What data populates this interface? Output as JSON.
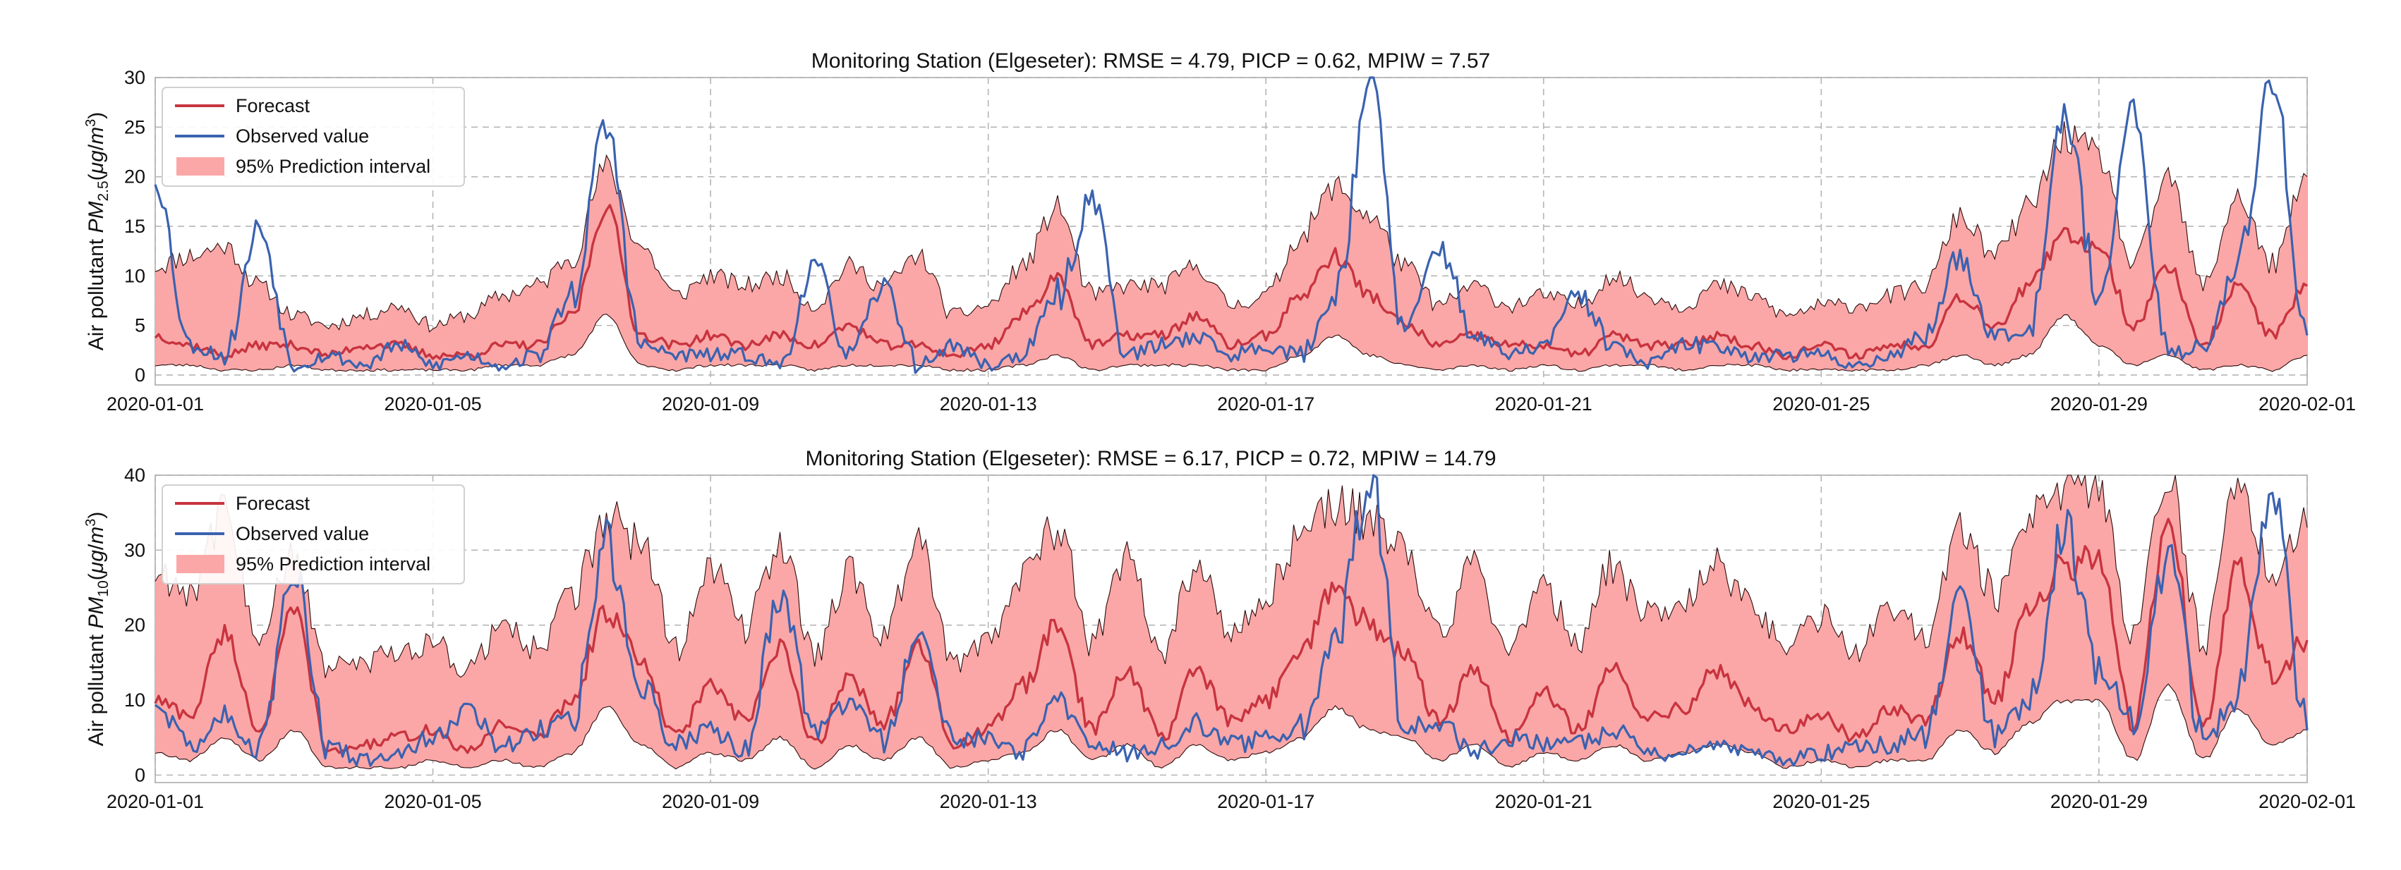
{
  "colors": {
    "forecast": "#c8343f",
    "observed": "#3a62b0",
    "interval_fill": "#fba7a7",
    "interval_edge": "#2b0b0b",
    "grid": "#b5b5b5",
    "frame": "#bdbdbd"
  },
  "chart_data": [
    {
      "type": "line",
      "title": "Monitoring Station (Elgeseter): RMSE = 4.79, PICP = 0.62, MPIW = 7.57",
      "ylabel_text": "Air pollutant ",
      "ylabel_symbol": "PM",
      "ylabel_subscript": "2.5",
      "ylabel_unit_open": "(",
      "ylabel_unit_mu": "μg",
      "ylabel_unit_slash": "/",
      "ylabel_unit_m": "m",
      "ylabel_unit_exp": "3",
      "ylabel_unit_close": ")",
      "xlabel": "",
      "ylim": [
        -1,
        30
      ],
      "yticks": [
        0,
        5,
        10,
        15,
        20,
        25,
        30
      ],
      "x_range_days": [
        0,
        31
      ],
      "xticks": [
        {
          "day": 0,
          "label": "2020-01-01"
        },
        {
          "day": 4,
          "label": "2020-01-05"
        },
        {
          "day": 8,
          "label": "2020-01-09"
        },
        {
          "day": 12,
          "label": "2020-01-13"
        },
        {
          "day": 16,
          "label": "2020-01-17"
        },
        {
          "day": 20,
          "label": "2020-01-21"
        },
        {
          "day": 24,
          "label": "2020-01-25"
        },
        {
          "day": 28,
          "label": "2020-01-29"
        },
        {
          "day": 31,
          "label": "2020-02-01"
        }
      ],
      "legend": [
        "Forecast",
        "Observed value",
        "95% Prediction interval"
      ],
      "legend_position": "upper-left",
      "x": [
        0,
        0.5,
        1,
        1.5,
        2,
        2.5,
        3,
        3.5,
        4,
        4.5,
        5,
        5.5,
        6,
        6.5,
        7,
        7.5,
        8,
        8.5,
        9,
        9.5,
        10,
        10.5,
        11,
        11.5,
        12,
        12.5,
        13,
        13.5,
        14,
        14.5,
        15,
        15.5,
        16,
        16.5,
        17,
        17.5,
        18,
        18.5,
        19,
        19.5,
        20,
        20.5,
        21,
        21.5,
        22,
        22.5,
        23,
        23.5,
        24,
        24.5,
        25,
        25.5,
        26,
        26.5,
        27,
        27.5,
        28,
        28.5,
        29,
        29.5,
        30,
        30.5,
        31
      ],
      "series": [
        {
          "name": "Forecast",
          "values": [
            4,
            3,
            2,
            3,
            3,
            2,
            3,
            3,
            2,
            2,
            3,
            3,
            6,
            17,
            4,
            3,
            4,
            3,
            4,
            3,
            5,
            3,
            3,
            2,
            3,
            6,
            10,
            3,
            4,
            4,
            6,
            3,
            4,
            8,
            12,
            8,
            5,
            3,
            4,
            3,
            3,
            2,
            4,
            3,
            3,
            4,
            3,
            2,
            3,
            2,
            3,
            3,
            8,
            5,
            9,
            14,
            13,
            5,
            11,
            3,
            9,
            4,
            9
          ]
        },
        {
          "name": "Observed value",
          "values": [
            20,
            3,
            2,
            15,
            1,
            2,
            1,
            3,
            1,
            2,
            1,
            2,
            8,
            25,
            3,
            2,
            2,
            2,
            1,
            11,
            2,
            9,
            1,
            3,
            1,
            2,
            8,
            18,
            2,
            3,
            4,
            2,
            3,
            2,
            8,
            30,
            4,
            13,
            4,
            2,
            3,
            8,
            3,
            1,
            3,
            3,
            2,
            2,
            2,
            1,
            2,
            4,
            12,
            4,
            5,
            27,
            8,
            26,
            2,
            3,
            11,
            30,
            4
          ]
        },
        {
          "name": "95% Prediction interval (lower)",
          "values": [
            1,
            1,
            0.5,
            0.5,
            1,
            0.5,
            0.5,
            0.5,
            0.5,
            0.5,
            1,
            1,
            2,
            6,
            1,
            0.5,
            1,
            1,
            1,
            0.5,
            1,
            1,
            1,
            0.5,
            0.5,
            1,
            2,
            0.5,
            1,
            1,
            1,
            0.5,
            0.5,
            2,
            4,
            2,
            1,
            0.5,
            1,
            0.5,
            1,
            0.5,
            1,
            1,
            0.5,
            1,
            1,
            0.5,
            0.5,
            0.5,
            0.5,
            1,
            2,
            1,
            2,
            6,
            3,
            1,
            2,
            0.5,
            1,
            0.5,
            2
          ]
        },
        {
          "name": "95% Prediction interval (upper)",
          "values": [
            11,
            12,
            13,
            9,
            6,
            5,
            6,
            7,
            5,
            6,
            8,
            9,
            12,
            21,
            13,
            8,
            10,
            9,
            10,
            7,
            11,
            9,
            12,
            6,
            7,
            11,
            17,
            8,
            9,
            9,
            11,
            7,
            8,
            14,
            19,
            16,
            11,
            7,
            9,
            7,
            8,
            7,
            10,
            8,
            7,
            9,
            8,
            6,
            7,
            7,
            8,
            9,
            16,
            12,
            17,
            24,
            22,
            11,
            20,
            9,
            18,
            11,
            20
          ]
        }
      ]
    },
    {
      "type": "line",
      "title": "Monitoring Station (Elgeseter): RMSE = 6.17, PICP = 0.72, MPIW = 14.79",
      "ylabel_text": "Air pollutant ",
      "ylabel_symbol": "PM",
      "ylabel_subscript": "10",
      "ylabel_unit_open": "(",
      "ylabel_unit_mu": "μg",
      "ylabel_unit_slash": "/",
      "ylabel_unit_m": "m",
      "ylabel_unit_exp": "3",
      "ylabel_unit_close": ")",
      "xlabel": "",
      "ylim": [
        -1,
        40
      ],
      "yticks": [
        0,
        10,
        20,
        30,
        40
      ],
      "x_range_days": [
        0,
        31
      ],
      "xticks": [
        {
          "day": 0,
          "label": "2020-01-01"
        },
        {
          "day": 4,
          "label": "2020-01-05"
        },
        {
          "day": 8,
          "label": "2020-01-09"
        },
        {
          "day": 12,
          "label": "2020-01-13"
        },
        {
          "day": 16,
          "label": "2020-01-17"
        },
        {
          "day": 20,
          "label": "2020-01-21"
        },
        {
          "day": 24,
          "label": "2020-01-25"
        },
        {
          "day": 28,
          "label": "2020-01-29"
        },
        {
          "day": 31,
          "label": "2020-02-01"
        }
      ],
      "legend": [
        "Forecast",
        "Observed value",
        "95% Prediction interval"
      ],
      "legend_position": "upper-left",
      "x": [
        0,
        0.5,
        1,
        1.5,
        2,
        2.5,
        3,
        3.5,
        4,
        4.5,
        5,
        5.5,
        6,
        6.5,
        7,
        7.5,
        8,
        8.5,
        9,
        9.5,
        10,
        10.5,
        11,
        11.5,
        12,
        12.5,
        13,
        13.5,
        14,
        14.5,
        15,
        15.5,
        16,
        16.5,
        17,
        17.5,
        18,
        18.5,
        19,
        19.5,
        20,
        20.5,
        21,
        21.5,
        22,
        22.5,
        23,
        23.5,
        24,
        24.5,
        25,
        25.5,
        26,
        26.5,
        27,
        27.5,
        28,
        28.5,
        29,
        29.5,
        30,
        30.5,
        31
      ],
      "series": [
        {
          "name": "Forecast",
          "values": [
            10,
            8,
            19,
            6,
            22,
            3,
            4,
            5,
            6,
            3,
            7,
            5,
            10,
            22,
            15,
            5,
            12,
            7,
            17,
            4,
            13,
            7,
            17,
            4,
            6,
            12,
            20,
            6,
            14,
            5,
            14,
            7,
            10,
            17,
            25,
            20,
            16,
            7,
            14,
            5,
            11,
            6,
            14,
            8,
            9,
            14,
            9,
            6,
            8,
            5,
            9,
            7,
            19,
            10,
            22,
            28,
            29,
            6,
            35,
            6,
            28,
            13,
            18
          ]
        },
        {
          "name": "Observed value",
          "values": [
            10,
            4,
            8,
            3,
            28,
            4,
            2,
            3,
            5,
            9,
            4,
            6,
            7,
            31,
            12,
            4,
            6,
            3,
            24,
            6,
            9,
            5,
            18,
            4,
            5,
            3,
            10,
            4,
            3,
            4,
            7,
            4,
            5,
            6,
            18,
            40,
            6,
            7,
            3,
            5,
            4,
            4,
            6,
            3,
            3,
            4,
            3,
            2,
            3,
            4,
            4,
            6,
            24,
            5,
            10,
            33,
            14,
            7,
            29,
            5,
            10,
            37,
            6
          ]
        },
        {
          "name": "95% Prediction interval (lower)",
          "values": [
            3,
            2,
            5,
            2,
            6,
            1,
            1,
            1,
            2,
            1,
            2,
            1,
            3,
            9,
            4,
            1,
            3,
            2,
            5,
            1,
            4,
            2,
            5,
            1,
            2,
            3,
            6,
            2,
            4,
            1,
            4,
            2,
            3,
            5,
            9,
            6,
            5,
            2,
            4,
            1,
            3,
            2,
            4,
            2,
            3,
            4,
            3,
            1,
            2,
            1,
            2,
            2,
            6,
            3,
            7,
            10,
            10,
            2,
            12,
            2,
            9,
            4,
            6
          ]
        },
        {
          "name": "95% Prediction interval (upper)",
          "values": [
            27,
            25,
            35,
            19,
            29,
            14,
            15,
            16,
            18,
            14,
            20,
            17,
            24,
            34,
            31,
            17,
            28,
            20,
            31,
            16,
            27,
            19,
            31,
            15,
            18,
            27,
            33,
            18,
            29,
            16,
            28,
            19,
            24,
            32,
            36,
            34,
            30,
            19,
            28,
            17,
            25,
            18,
            28,
            21,
            22,
            28,
            22,
            17,
            21,
            17,
            22,
            19,
            33,
            24,
            35,
            38,
            38,
            18,
            40,
            18,
            38,
            27,
            33
          ]
        }
      ]
    }
  ]
}
